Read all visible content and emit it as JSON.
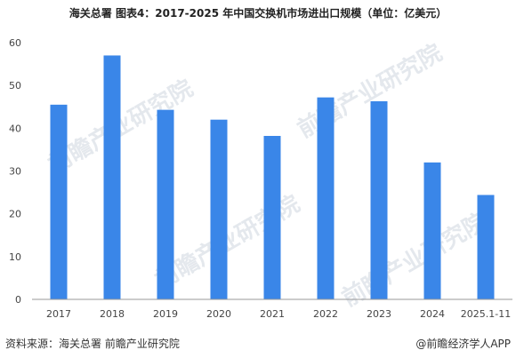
{
  "header": {
    "source_prefix": "海关总署",
    "title": "图表4：2017-2025 年中国交换机市场进出口规模（单位：亿美元）"
  },
  "footer": {
    "source": "资料来源：海关总署 前瞻产业研究院",
    "brand": "@前瞻经济学人APP"
  },
  "watermark": "前瞻产业研究院",
  "colors": {
    "bar": "#3a86e8",
    "axis": "#999999",
    "grid": "#dddddd"
  },
  "chart_data": {
    "type": "bar",
    "categories": [
      "2017",
      "2018",
      "2019",
      "2020",
      "2021",
      "2022",
      "2023",
      "2024",
      "2025.1-11"
    ],
    "values": [
      45.5,
      57,
      44.3,
      42,
      38.2,
      47.2,
      46.3,
      32,
      24.4
    ],
    "ylim": [
      0,
      60
    ],
    "yticks": [
      "0",
      "10",
      "20",
      "30",
      "40",
      "50",
      "60"
    ],
    "grid": false
  }
}
